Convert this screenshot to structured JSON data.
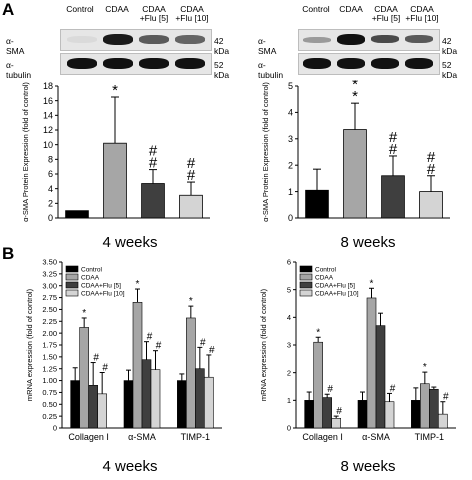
{
  "panels": {
    "A_label": "A",
    "B_label": "B"
  },
  "blots": [
    {
      "conditions": [
        "Control",
        "CDAA",
        "CDAA\n+Flu [5]",
        "CDAA\n+Flu [10]"
      ],
      "rows": [
        {
          "label": "α-SMA",
          "kda": "42 kDa",
          "intensities": [
            0.05,
            1.0,
            0.55,
            0.5
          ]
        },
        {
          "label": "α-tubulin",
          "kda": "52 kDa",
          "intensities": [
            1.0,
            1.0,
            1.0,
            1.0
          ]
        }
      ]
    },
    {
      "conditions": [
        "Control",
        "CDAA",
        "CDAA\n+Flu [5]",
        "CDAA\n+Flu [10]"
      ],
      "rows": [
        {
          "label": "α-SMA",
          "kda": "42 kDa",
          "intensities": [
            0.15,
            1.0,
            0.6,
            0.5
          ]
        },
        {
          "label": "α-tubulin",
          "kda": "52 kDa",
          "intensities": [
            1.0,
            1.0,
            1.0,
            1.0
          ]
        }
      ]
    }
  ],
  "chart_data": [
    {
      "type": "bar",
      "title": "4 weeks",
      "ylabel": "α-SMA Protein Expression (fold of control)",
      "ylim": [
        0,
        18
      ],
      "yticks": [
        0,
        2,
        4,
        6,
        8,
        10,
        12,
        14,
        16,
        18
      ],
      "categories": [
        "Control",
        "CDAA",
        "CDAA+Flu [5]",
        "CDAA+Flu [10]"
      ],
      "values": [
        1.0,
        10.2,
        4.7,
        3.1
      ],
      "errors": [
        0,
        6.3,
        1.9,
        1.8
      ],
      "annotations": [
        "",
        "*\n*",
        "#\n#",
        "#\n#"
      ],
      "colors": [
        "#000000",
        "#a6a6a6",
        "#3f3f3f",
        "#d4d4d4"
      ]
    },
    {
      "type": "bar",
      "title": "8 weeks",
      "ylabel": "α-SMA Protein Expression (fold of control)",
      "ylim": [
        0,
        5
      ],
      "yticks": [
        0,
        1,
        2,
        3,
        4,
        5
      ],
      "categories": [
        "Control",
        "CDAA",
        "CDAA+Flu [5]",
        "CDAA+Flu [10]"
      ],
      "values": [
        1.05,
        3.35,
        1.6,
        1.0
      ],
      "errors": [
        0.8,
        1.0,
        0.75,
        0.6
      ],
      "annotations": [
        "",
        "*\n*",
        "#\n#",
        "#\n#"
      ],
      "colors": [
        "#000000",
        "#a6a6a6",
        "#3f3f3f",
        "#d4d4d4"
      ]
    },
    {
      "type": "bar",
      "title": "4 weeks",
      "ylabel": "mRNA expression (fold of control)",
      "ylim": [
        0,
        3.5
      ],
      "yticks": [
        0,
        0.25,
        0.5,
        0.75,
        1.0,
        1.25,
        1.5,
        1.75,
        2.0,
        2.25,
        2.5,
        2.75,
        3.0,
        3.25,
        3.5
      ],
      "ytick_labels": [
        "0",
        "0.25",
        "0.50",
        "0.75",
        "1.00",
        "1.25",
        "1.50",
        "1.75",
        "2.00",
        "2.25",
        "2.50",
        "2.75",
        "3.00",
        "3.25",
        "3.50"
      ],
      "categories": [
        "Collagen I",
        "α-SMA",
        "TIMP-1"
      ],
      "series": [
        {
          "name": "Control",
          "color": "#000000",
          "values": [
            1.0,
            1.0,
            1.0
          ],
          "errors": [
            0.27,
            0.22,
            0.14
          ],
          "annotations": [
            "",
            "",
            ""
          ]
        },
        {
          "name": "CDAA",
          "color": "#a6a6a6",
          "values": [
            2.12,
            2.65,
            2.32
          ],
          "errors": [
            0.2,
            0.28,
            0.25
          ],
          "annotations": [
            "*",
            "*",
            "*"
          ]
        },
        {
          "name": "CDAA+Flu [5]",
          "color": "#3f3f3f",
          "values": [
            0.9,
            1.44,
            1.25
          ],
          "errors": [
            0.48,
            0.38,
            0.45
          ],
          "annotations": [
            "#",
            "#",
            "#"
          ]
        },
        {
          "name": "CDAA+Flu [10]",
          "color": "#d4d4d4",
          "values": [
            0.72,
            1.23,
            1.07
          ],
          "errors": [
            0.45,
            0.4,
            0.47
          ],
          "annotations": [
            "#",
            "#",
            "#"
          ]
        }
      ],
      "legend": "top-left"
    },
    {
      "type": "bar",
      "title": "8 weeks",
      "ylabel": "mRNA expression (fold of control)",
      "ylim": [
        0,
        6
      ],
      "yticks": [
        0,
        1,
        2,
        3,
        4,
        5,
        6
      ],
      "categories": [
        "Collagen I",
        "α-SMA",
        "TIMP-1"
      ],
      "series": [
        {
          "name": "Control",
          "color": "#000000",
          "values": [
            1.0,
            1.0,
            1.0
          ],
          "errors": [
            0.3,
            0.3,
            0.45
          ],
          "annotations": [
            "",
            "",
            ""
          ]
        },
        {
          "name": "CDAA",
          "color": "#a6a6a6",
          "values": [
            3.1,
            4.7,
            1.6
          ],
          "errors": [
            0.18,
            0.35,
            0.42
          ],
          "annotations": [
            "*",
            "*",
            "*"
          ]
        },
        {
          "name": "CDAA+Flu [5]",
          "color": "#3f3f3f",
          "values": [
            1.1,
            3.7,
            1.4
          ],
          "errors": [
            0.12,
            0.45,
            0.08
          ],
          "annotations": [
            "#",
            "",
            ""
          ]
        },
        {
          "name": "CDAA+Flu [10]",
          "color": "#d4d4d4",
          "values": [
            0.35,
            0.95,
            0.5
          ],
          "errors": [
            0.08,
            0.3,
            0.45
          ],
          "annotations": [
            "#",
            "#",
            "#"
          ]
        }
      ],
      "legend": "top-left"
    }
  ]
}
